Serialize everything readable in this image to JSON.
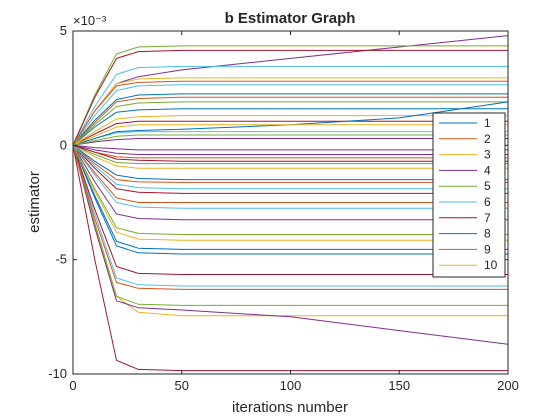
{
  "chart_data": {
    "type": "line",
    "title": "b Estimator Graph",
    "xlabel": "iterations number",
    "ylabel": "estimator",
    "xlim": [
      0,
      200
    ],
    "ylim": [
      -10,
      5
    ],
    "y_exponent_label": "×10⁻³",
    "xticks": [
      "0",
      "50",
      "100",
      "150",
      "200"
    ],
    "yticks": [
      "5",
      "0",
      "-5",
      "-10"
    ],
    "grid": false,
    "legend_position": "right",
    "legend": [
      "1",
      "2",
      "3",
      "4",
      "5",
      "6",
      "7",
      "8",
      "9",
      "10"
    ],
    "palette": [
      "#0072bd",
      "#d95319",
      "#edb120",
      "#7e2f8e",
      "#77ac30",
      "#4dbeee",
      "#a2142f",
      "#0072bd",
      "#d95319",
      "#edb120"
    ],
    "series": [
      {
        "name": "1",
        "color": "#0072bd",
        "x": [
          0,
          10,
          20,
          30,
          50,
          100,
          150,
          200
        ],
        "values": [
          0,
          1.1,
          2.0,
          2.2,
          2.25,
          2.25,
          2.25,
          2.25
        ]
      },
      {
        "name": "2",
        "color": "#d95319",
        "x": [
          0,
          10,
          20,
          30,
          50,
          100,
          150,
          200
        ],
        "values": [
          0,
          -0.3,
          -0.5,
          -0.55,
          -0.55,
          -0.55,
          -0.55,
          -0.55
        ]
      },
      {
        "name": "3",
        "color": "#edb120",
        "x": [
          0,
          10,
          20,
          30,
          50,
          100,
          150,
          200
        ],
        "values": [
          0,
          -3.5,
          -6.6,
          -7.3,
          -7.45,
          -7.45,
          -7.45,
          -7.45
        ]
      },
      {
        "name": "4",
        "color": "#7e2f8e",
        "x": [
          0,
          10,
          20,
          30,
          50,
          100,
          150,
          200
        ],
        "values": [
          0,
          1.5,
          2.7,
          3.0,
          3.3,
          3.8,
          4.3,
          4.8
        ]
      },
      {
        "name": "5",
        "color": "#77ac30",
        "x": [
          0,
          10,
          20,
          30,
          50,
          100,
          150,
          200
        ],
        "values": [
          0,
          2.2,
          4.0,
          4.3,
          4.35,
          4.35,
          4.35,
          4.35
        ]
      },
      {
        "name": "6",
        "color": "#4dbeee",
        "x": [
          0,
          10,
          20,
          30,
          50,
          100,
          150,
          200
        ],
        "values": [
          0,
          1.7,
          3.1,
          3.4,
          3.45,
          3.45,
          3.45,
          3.45
        ]
      },
      {
        "name": "7",
        "color": "#a2142f",
        "x": [
          0,
          10,
          20,
          30,
          50,
          100,
          150,
          200
        ],
        "values": [
          0,
          -5.0,
          -9.4,
          -9.8,
          -9.85,
          -9.85,
          -9.85,
          -9.85
        ]
      },
      {
        "name": "8",
        "color": "#0072bd",
        "x": [
          0,
          10,
          20,
          30,
          50,
          100,
          150,
          200
        ],
        "values": [
          0,
          -2.2,
          -4.2,
          -4.5,
          -4.55,
          -4.55,
          -4.55,
          -4.55
        ]
      },
      {
        "name": "9",
        "color": "#d95319",
        "x": [
          0,
          10,
          20,
          30,
          50,
          100,
          150,
          200
        ],
        "values": [
          0,
          -0.8,
          -1.5,
          -1.6,
          -1.62,
          -1.62,
          -1.62,
          -1.62
        ]
      },
      {
        "name": "10",
        "color": "#edb120",
        "x": [
          0,
          10,
          20,
          30,
          50,
          100,
          150,
          200
        ],
        "values": [
          0,
          1.5,
          2.7,
          2.9,
          2.95,
          2.95,
          2.95,
          2.95
        ]
      },
      {
        "color": "#7e2f8e",
        "x": [
          0,
          10,
          20,
          30,
          50,
          100,
          150,
          200
        ],
        "values": [
          0,
          -3.6,
          -6.8,
          -7.1,
          -7.2,
          -7.5,
          -8.1,
          -8.7
        ]
      },
      {
        "color": "#77ac30",
        "x": [
          0,
          10,
          20,
          30,
          50,
          100,
          150,
          200
        ],
        "values": [
          0,
          -3.4,
          -6.6,
          -6.95,
          -7.0,
          -7.0,
          -7.0,
          -7.0
        ]
      },
      {
        "color": "#4dbeee",
        "x": [
          0,
          10,
          20,
          30,
          50,
          100,
          150,
          200
        ],
        "values": [
          0,
          -3.0,
          -5.8,
          -6.1,
          -6.15,
          -6.15,
          -6.15,
          -6.15
        ]
      },
      {
        "color": "#a2142f",
        "x": [
          0,
          10,
          20,
          30,
          50,
          100,
          150,
          200
        ],
        "values": [
          0,
          -2.8,
          -5.3,
          -5.6,
          -5.65,
          -5.65,
          -5.65,
          -5.65
        ]
      },
      {
        "color": "#0072bd",
        "x": [
          0,
          10,
          20,
          30,
          50,
          100,
          150,
          200
        ],
        "values": [
          0,
          -2.3,
          -4.4,
          -4.7,
          -4.75,
          -4.75,
          -4.75,
          -4.75
        ]
      },
      {
        "color": "#d95319",
        "x": [
          0,
          10,
          20,
          30,
          50,
          100,
          150,
          200
        ],
        "values": [
          0,
          -3.2,
          -6.0,
          -6.25,
          -6.3,
          -6.3,
          -6.3,
          -6.3
        ]
      },
      {
        "color": "#edb120",
        "x": [
          0,
          10,
          20,
          30,
          50,
          100,
          150,
          200
        ],
        "values": [
          0,
          -2.0,
          -3.8,
          -4.1,
          -4.15,
          -4.15,
          -4.15,
          -4.15
        ]
      },
      {
        "color": "#7e2f8e",
        "x": [
          0,
          10,
          20,
          30,
          50,
          100,
          150,
          200
        ],
        "values": [
          0,
          -1.6,
          -3.0,
          -3.2,
          -3.25,
          -3.25,
          -3.25,
          -3.25
        ]
      },
      {
        "color": "#77ac30",
        "x": [
          0,
          10,
          20,
          30,
          50,
          100,
          150,
          200
        ],
        "values": [
          0,
          -1.9,
          -3.6,
          -3.85,
          -3.9,
          -3.9,
          -3.9,
          -3.9
        ]
      },
      {
        "color": "#4dbeee",
        "x": [
          0,
          10,
          20,
          30,
          50,
          100,
          150,
          200
        ],
        "values": [
          0,
          -1.3,
          -2.5,
          -2.7,
          -2.75,
          -2.75,
          -2.75,
          -2.75
        ]
      },
      {
        "color": "#a2142f",
        "x": [
          0,
          10,
          20,
          30,
          50,
          100,
          150,
          200
        ],
        "values": [
          0,
          -1.0,
          -1.9,
          -2.05,
          -2.1,
          -2.1,
          -2.1,
          -2.1
        ]
      },
      {
        "color": "#0072bd",
        "x": [
          0,
          10,
          20,
          30,
          50,
          100,
          150,
          200
        ],
        "values": [
          0,
          -0.7,
          -1.3,
          -1.45,
          -1.5,
          -1.5,
          -1.5,
          -1.5
        ]
      },
      {
        "color": "#d95319",
        "x": [
          0,
          10,
          20,
          30,
          50,
          100,
          150,
          200
        ],
        "values": [
          0,
          -1.2,
          -2.3,
          -2.5,
          -2.5,
          -2.5,
          -2.5,
          -2.5
        ]
      },
      {
        "color": "#edb120",
        "x": [
          0,
          10,
          20,
          30,
          50,
          100,
          150,
          200
        ],
        "values": [
          0,
          -0.5,
          -0.9,
          -1.0,
          -1.0,
          -1.0,
          -1.0,
          -1.0
        ]
      },
      {
        "color": "#7e2f8e",
        "x": [
          0,
          10,
          20,
          30,
          50,
          100,
          150,
          200
        ],
        "values": [
          0,
          -0.2,
          -0.35,
          -0.4,
          -0.4,
          -0.4,
          -0.4,
          -0.4
        ]
      },
      {
        "color": "#77ac30",
        "x": [
          0,
          10,
          20,
          30,
          50,
          100,
          150,
          200
        ],
        "values": [
          0,
          -0.4,
          -0.75,
          -0.8,
          -0.8,
          -0.8,
          -0.8,
          -0.8
        ]
      },
      {
        "color": "#4dbeee",
        "x": [
          0,
          10,
          20,
          30,
          50,
          100,
          150,
          200
        ],
        "values": [
          0,
          0.3,
          0.55,
          0.6,
          0.6,
          0.6,
          0.6,
          0.6
        ]
      },
      {
        "color": "#a2142f",
        "x": [
          0,
          10,
          20,
          30,
          50,
          100,
          150,
          200
        ],
        "values": [
          0,
          0.5,
          0.95,
          1.05,
          1.05,
          1.05,
          1.05,
          1.05
        ]
      },
      {
        "color": "#0072bd",
        "x": [
          0,
          10,
          20,
          30,
          50,
          100,
          150,
          200
        ],
        "values": [
          0,
          0.8,
          1.45,
          1.55,
          1.6,
          1.6,
          1.6,
          1.6
        ]
      },
      {
        "color": "#d95319",
        "x": [
          0,
          10,
          20,
          30,
          50,
          100,
          150,
          200
        ],
        "values": [
          0,
          1.0,
          1.9,
          2.05,
          2.1,
          2.1,
          2.1,
          2.1
        ]
      },
      {
        "color": "#edb120",
        "x": [
          0,
          10,
          20,
          30,
          50,
          100,
          150,
          200
        ],
        "values": [
          0,
          0.6,
          1.15,
          1.25,
          1.3,
          1.3,
          1.3,
          1.3
        ]
      },
      {
        "color": "#7e2f8e",
        "x": [
          0,
          10,
          20,
          30,
          50,
          100,
          150,
          200
        ],
        "values": [
          0,
          0.15,
          0.25,
          0.3,
          0.3,
          0.3,
          0.3,
          0.3
        ]
      },
      {
        "color": "#77ac30",
        "x": [
          0,
          10,
          20,
          30,
          50,
          100,
          150,
          200
        ],
        "values": [
          0,
          0.9,
          1.7,
          1.85,
          1.9,
          1.9,
          1.9,
          1.9
        ]
      },
      {
        "color": "#4dbeee",
        "x": [
          0,
          10,
          20,
          30,
          50,
          100,
          150,
          200
        ],
        "values": [
          0,
          1.3,
          2.4,
          2.6,
          2.65,
          2.65,
          2.65,
          2.65
        ]
      },
      {
        "color": "#a2142f",
        "x": [
          0,
          10,
          20,
          30,
          50,
          100,
          150,
          200
        ],
        "values": [
          0,
          2.1,
          3.8,
          4.1,
          4.15,
          4.15,
          4.15,
          4.15
        ]
      },
      {
        "color": "#0072bd",
        "x": [
          0,
          10,
          20,
          30,
          50,
          100,
          150,
          200
        ],
        "values": [
          0,
          0.3,
          0.6,
          0.65,
          0.7,
          0.9,
          1.2,
          1.9
        ]
      },
      {
        "color": "#d95319",
        "x": [
          0,
          10,
          20,
          30,
          50,
          100,
          150,
          200
        ],
        "values": [
          0,
          1.5,
          2.6,
          2.75,
          2.8,
          2.8,
          2.8,
          2.8
        ]
      },
      {
        "color": "#edb120",
        "x": [
          0,
          10,
          20,
          30,
          50,
          100,
          150,
          200
        ],
        "values": [
          0,
          0.4,
          0.8,
          0.9,
          0.9,
          0.9,
          0.9,
          0.9
        ]
      },
      {
        "color": "#7e2f8e",
        "x": [
          0,
          10,
          20,
          30,
          50,
          100,
          150,
          200
        ],
        "values": [
          0,
          -0.1,
          -0.15,
          -0.2,
          -0.2,
          -0.2,
          -0.2,
          -0.2
        ]
      },
      {
        "color": "#77ac30",
        "x": [
          0,
          10,
          20,
          30,
          50,
          100,
          150,
          200
        ],
        "values": [
          0,
          0.2,
          0.4,
          0.45,
          0.45,
          0.45,
          0.45,
          0.45
        ]
      },
      {
        "color": "#4dbeee",
        "x": [
          0,
          10,
          20,
          30,
          50,
          100,
          150,
          200
        ],
        "values": [
          0,
          -0.9,
          -1.7,
          -1.85,
          -1.9,
          -1.9,
          -1.9,
          -1.9
        ]
      },
      {
        "color": "#a2142f",
        "x": [
          0,
          10,
          20,
          30,
          50,
          100,
          150,
          200
        ],
        "values": [
          0,
          -0.3,
          -0.6,
          -0.65,
          -0.7,
          -0.7,
          -0.7,
          -0.7
        ]
      }
    ]
  }
}
